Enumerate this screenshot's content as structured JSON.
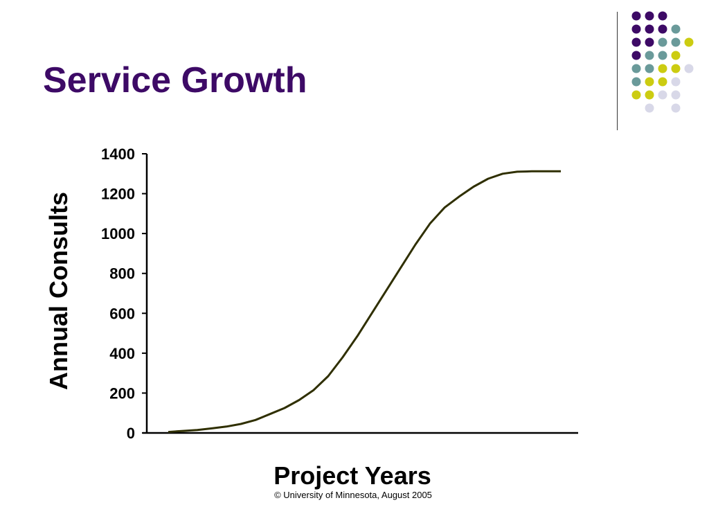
{
  "slide": {
    "title": "Service Growth",
    "footer": "©  University of Minnesota, August 2005"
  },
  "colors": {
    "title": "#3d0a66",
    "line": "#2f2f00",
    "axis": "#000000",
    "dot_palette": [
      "#3d0a66",
      "#6a9a9a",
      "#cccc11",
      "#d8d8e8"
    ]
  },
  "decoration": {
    "dot_grid_rows": [
      [
        0,
        0,
        0,
        -1,
        -1
      ],
      [
        0,
        0,
        0,
        1,
        -1
      ],
      [
        0,
        0,
        1,
        1,
        2
      ],
      [
        0,
        1,
        1,
        2,
        -1
      ],
      [
        1,
        1,
        2,
        2,
        3
      ],
      [
        1,
        2,
        2,
        3,
        -1
      ],
      [
        2,
        2,
        3,
        3,
        -1
      ],
      [
        -1,
        3,
        -1,
        3,
        -1
      ]
    ]
  },
  "chart_data": {
    "type": "line",
    "title": "",
    "xlabel": "Project Years",
    "ylabel": "Annual Consults",
    "ylim": [
      0,
      1400
    ],
    "yticks": [
      "0",
      "200",
      "400",
      "600",
      "800",
      "1000",
      "1200",
      "1400"
    ],
    "grid": false,
    "legend": "none",
    "x": [
      0,
      1,
      2,
      3,
      4,
      5,
      6,
      7,
      8,
      9,
      10,
      11,
      12,
      13,
      14,
      15,
      16,
      17,
      18,
      19,
      20,
      21,
      22,
      23,
      24,
      25,
      26,
      27
    ],
    "series": [
      {
        "values": [
          5,
          10,
          15,
          23,
          32,
          45,
          65,
          95,
          125,
          165,
          215,
          285,
          380,
          485,
          600,
          715,
          830,
          945,
          1050,
          1130,
          1185,
          1235,
          1275,
          1300,
          1310,
          1312,
          1312,
          1312
        ]
      }
    ]
  }
}
